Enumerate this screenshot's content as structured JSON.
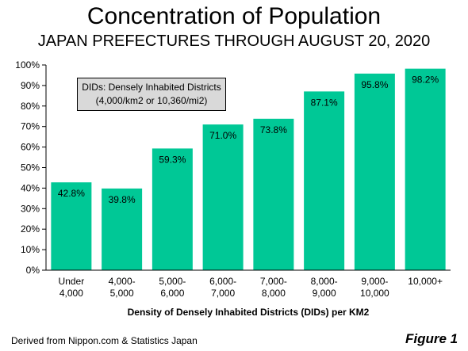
{
  "chart_data": {
    "type": "bar",
    "title": "Concentration of Population",
    "subtitle": "JAPAN PREFECTURES THROUGH AUGUST 20, 2020",
    "categories": [
      [
        "Under",
        "4,000"
      ],
      [
        "4,000-",
        "5,000"
      ],
      [
        "5,000-",
        "6,000"
      ],
      [
        "6,000-",
        "7,000"
      ],
      [
        "7,000-",
        "8,000"
      ],
      [
        "8,000-",
        "9,000"
      ],
      [
        "9,000-",
        "10,000"
      ],
      [
        "10,000+"
      ]
    ],
    "values": [
      42.8,
      39.8,
      59.3,
      71.0,
      73.8,
      87.1,
      95.8,
      98.2
    ],
    "data_labels": [
      "42.8%",
      "39.8%",
      "59.3%",
      "71.0%",
      "73.8%",
      "87.1%",
      "95.8%",
      "98.2%"
    ],
    "xlabel": "Density of Densely Inhabited Districts (DIDs) per KM2",
    "ylabel": "",
    "ylim": [
      0,
      100
    ],
    "yticks": [
      0,
      10,
      20,
      30,
      40,
      50,
      60,
      70,
      80,
      90,
      100
    ],
    "ytick_labels": [
      "0%",
      "10%",
      "20%",
      "30%",
      "40%",
      "50%",
      "60%",
      "70%",
      "80%",
      "90%",
      "100%"
    ],
    "bar_color": "#00c896",
    "grid": false,
    "legend": "none",
    "annotation": {
      "line1": "DIDs: Densely Inhabited Districts",
      "line2": "(4,000/km2 or  10,360/mi2)"
    }
  },
  "footer": {
    "source": "Derived from Nippon.com & Statistics Japan",
    "figure_label": "Figure 1"
  }
}
